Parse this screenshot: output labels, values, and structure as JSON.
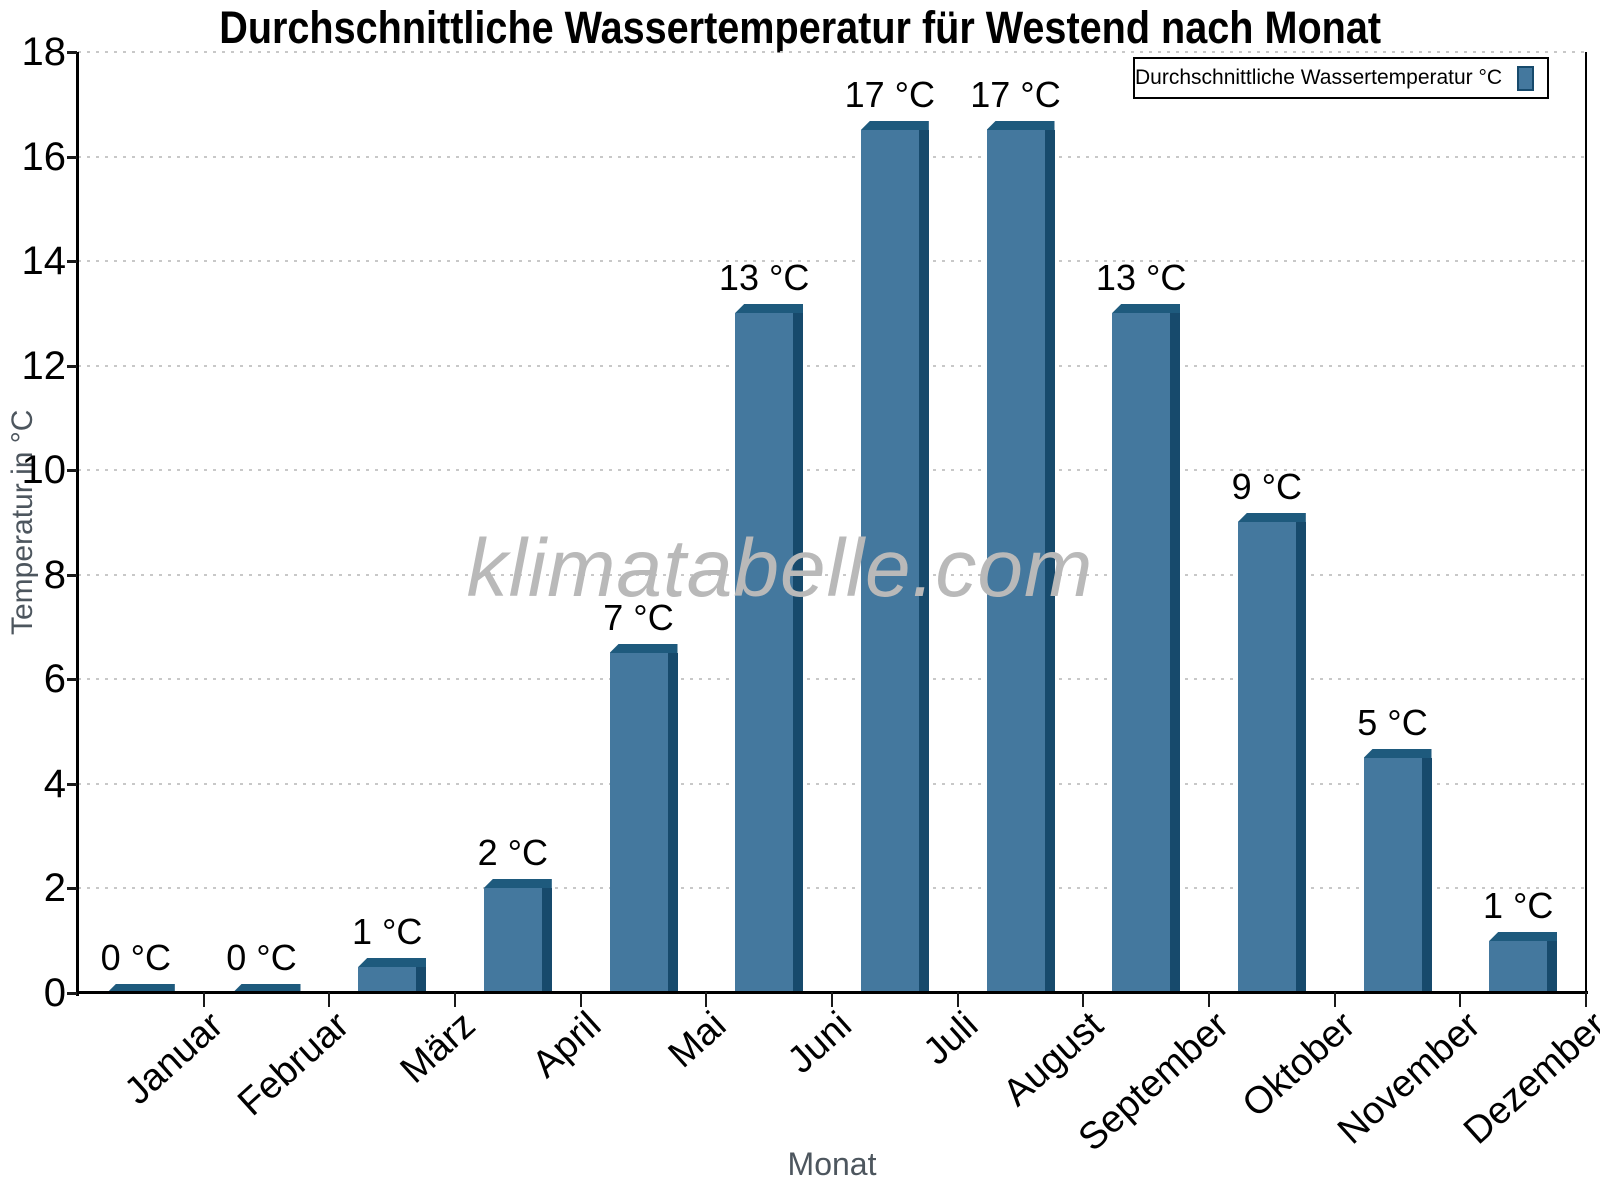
{
  "title": "Durchschnittliche Wassertemperatur für Westend nach Monat",
  "watermark": "klimatabelle.com",
  "legend": {
    "label": "Durchschnittliche Wassertemperatur °C",
    "swatch_icon": "blue-square-swatch",
    "position": "top-right"
  },
  "chart_data": {
    "type": "bar",
    "title": "Durchschnittliche Wassertemperatur für Westend nach Monat",
    "categories": [
      "Januar",
      "Februar",
      "März",
      "April",
      "Mai",
      "Juni",
      "Juli",
      "August",
      "September",
      "Oktober",
      "November",
      "Dezember"
    ],
    "values": [
      0,
      0,
      0.5,
      2,
      6.5,
      13,
      16.5,
      16.5,
      13,
      9,
      4.5,
      1
    ],
    "bar_labels": [
      "0 °C",
      "0 °C",
      "1 °C",
      "2 °C",
      "7 °C",
      "13 °C",
      "17 °C",
      "17 °C",
      "13 °C",
      "9 °C",
      "5 °C",
      "1 °C"
    ],
    "xlabel": "Monat",
    "ylabel": "Temperatur in °C",
    "ylim": [
      0,
      18
    ],
    "ytick_step": 2,
    "yticks": [
      0,
      2,
      4,
      6,
      8,
      10,
      12,
      14,
      16,
      18
    ],
    "legend": "Durchschnittliche Wassertemperatur °C",
    "legend_position": "top-right",
    "grid": "horizontal-dotted",
    "bar_style": "3d-beveled",
    "colors": {
      "bar_face": "#44789E",
      "bar_side": "#174A6C",
      "bar_top": "#1E5A7D",
      "axis": "#000000",
      "grid": "#C8C8C8",
      "axis_label_text": "#4D565E",
      "watermark_text": "#B9B9B9"
    }
  }
}
